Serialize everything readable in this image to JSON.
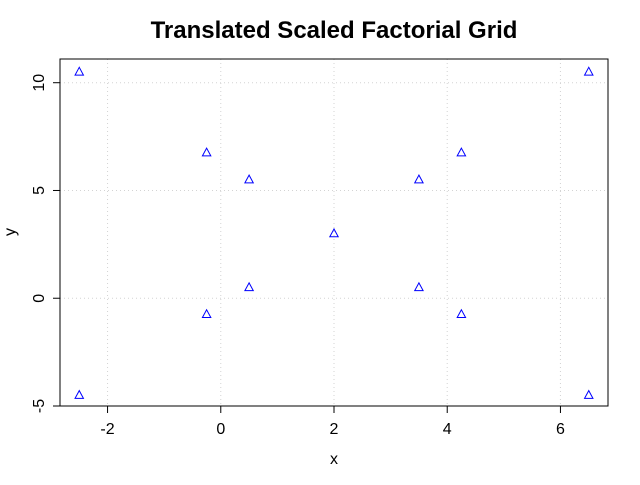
{
  "chart_data": {
    "type": "scatter",
    "title": "Translated Scaled Factorial Grid",
    "xlabel": "x",
    "ylabel": "y",
    "xlim": [
      -2.84,
      6.84
    ],
    "ylim": [
      -5.0,
      11.1
    ],
    "x_ticks": [
      -2,
      0,
      2,
      4,
      6
    ],
    "y_ticks": [
      -5,
      0,
      5,
      10
    ],
    "grid": true,
    "marker": "triangle-open",
    "colors": {
      "points": "#0000ff",
      "grid": "#d3d3d3",
      "axis": "#000000"
    },
    "series": [
      {
        "x": [
          -2.5,
          6.5,
          -2.5,
          6.5,
          -0.25,
          4.25,
          -0.25,
          4.25,
          0.5,
          3.5,
          0.5,
          3.5,
          2.0
        ],
        "y": [
          -4.5,
          -4.5,
          10.5,
          10.5,
          -0.75,
          -0.75,
          6.75,
          6.75,
          0.5,
          0.5,
          5.5,
          5.5,
          3.0
        ]
      }
    ]
  }
}
